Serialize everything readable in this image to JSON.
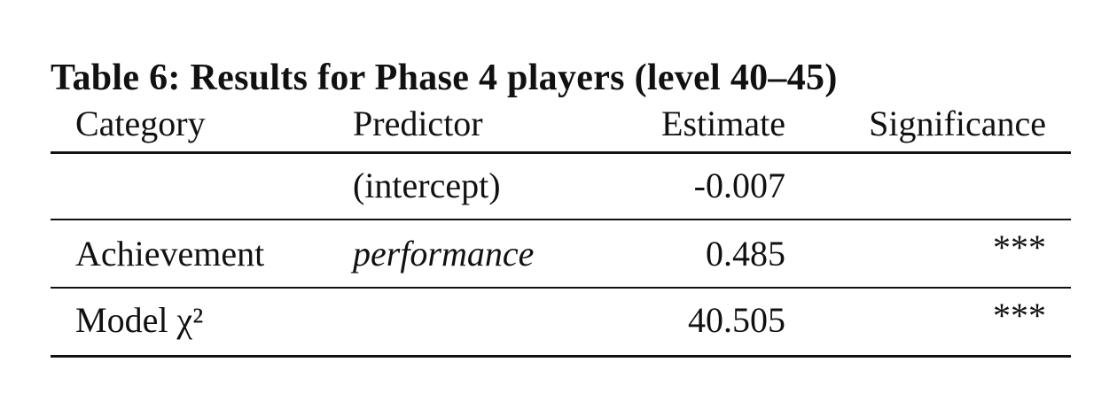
{
  "caption": "Table 6: Results for Phase 4 players (level 40–45)",
  "table": {
    "header": [
      "Category",
      "Predictor",
      "Estimate",
      "Significance"
    ],
    "rows": [
      [
        null,
        "(intercept)",
        "-0.007",
        null
      ],
      [
        "Achievement",
        "performance",
        "0.485",
        "***"
      ],
      [
        "Model χ²",
        null,
        "40.505",
        "***"
      ]
    ]
  }
}
